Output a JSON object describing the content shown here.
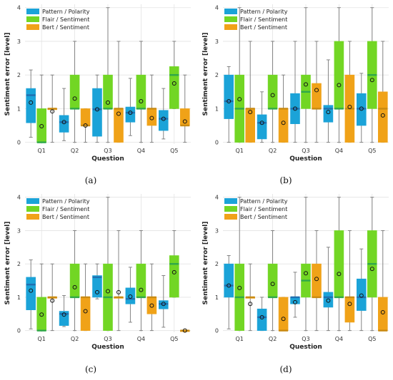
{
  "figure": {
    "background": "#ffffff",
    "colors": {
      "pattern": "#1ba3d8",
      "flair": "#72d624",
      "bert": "#f0a218",
      "median": [
        "#1f6fb0",
        "#2fa84a",
        "#c98a12"
      ]
    }
  },
  "chart_data": [
    {
      "type": "box",
      "panel_label": "(a)",
      "xlabel": "Question",
      "ylabel": "Sentiment error [level]",
      "ylim": [
        -0.05,
        4.1
      ],
      "yticks": [
        0,
        1,
        2,
        3,
        4
      ],
      "categories": [
        "Q1",
        "Q2",
        "Q3",
        "Q4",
        "Q5"
      ],
      "legend_position": "top-left",
      "grid": true,
      "series": [
        {
          "name": "Pattern / Polarity",
          "color": "#1ba3d8",
          "boxes": [
            {
              "whisker_low": 0.15,
              "q1": 0.58,
              "median": 1.4,
              "q3": 1.6,
              "whisker_high": 2.15,
              "mean": 1.18
            },
            {
              "whisker_low": 0.05,
              "q1": 0.3,
              "median": 0.6,
              "q3": 0.8,
              "whisker_high": 1.6,
              "mean": 0.6
            },
            {
              "whisker_low": 0.0,
              "q1": 0.18,
              "median": 0.98,
              "q3": 1.6,
              "whisker_high": 2.0,
              "mean": 0.98
            },
            {
              "whisker_low": 0.2,
              "q1": 0.6,
              "median": 0.88,
              "q3": 1.05,
              "whisker_high": 1.9,
              "mean": 0.88
            },
            {
              "whisker_low": 0.1,
              "q1": 0.35,
              "median": 0.7,
              "q3": 0.95,
              "whisker_high": 1.6,
              "mean": 0.7
            }
          ]
        },
        {
          "name": "Flair / Sentiment",
          "color": "#72d624",
          "boxes": [
            {
              "whisker_low": 0.0,
              "q1": 0.0,
              "median": 0.0,
              "q3": 1.0,
              "whisker_high": 2.0,
              "mean": 0.48
            },
            {
              "whisker_low": 0.0,
              "q1": 1.0,
              "median": 1.0,
              "q3": 2.0,
              "whisker_high": 3.0,
              "mean": 1.3
            },
            {
              "whisker_low": 0.0,
              "q1": 1.0,
              "median": 1.0,
              "q3": 2.0,
              "whisker_high": 4.0,
              "mean": 1.18
            },
            {
              "whisker_low": 0.0,
              "q1": 1.0,
              "median": 1.0,
              "q3": 2.0,
              "whisker_high": 3.0,
              "mean": 1.22
            },
            {
              "whisker_low": 1.0,
              "q1": 1.0,
              "median": 2.0,
              "q3": 2.25,
              "whisker_high": 3.0,
              "mean": 1.75
            }
          ]
        },
        {
          "name": "Bert / Sentiment",
          "color": "#f0a218",
          "boxes": [
            {
              "whisker_low": 0.0,
              "q1": 1.0,
              "median": 1.0,
              "q3": 1.0,
              "whisker_high": 2.0,
              "mean": 0.92
            },
            {
              "whisker_low": 0.0,
              "q1": 0.5,
              "median": 0.5,
              "q3": 1.0,
              "whisker_high": 1.0,
              "mean": 0.5
            },
            {
              "whisker_low": 0.0,
              "q1": 0.0,
              "median": 1.0,
              "q3": 1.0,
              "whisker_high": 3.0,
              "mean": 0.85
            },
            {
              "whisker_low": 0.0,
              "q1": 0.5,
              "median": 1.0,
              "q3": 1.0,
              "whisker_high": 2.0,
              "mean": 0.72
            },
            {
              "whisker_low": 0.0,
              "q1": 0.5,
              "median": 0.5,
              "q3": 1.0,
              "whisker_high": 2.0,
              "mean": 0.62
            }
          ]
        }
      ]
    },
    {
      "type": "box",
      "panel_label": "(b)",
      "xlabel": "Question",
      "ylabel": "Sentiment error [level]",
      "ylim": [
        -0.05,
        4.1
      ],
      "yticks": [
        0,
        1,
        2,
        3,
        4
      ],
      "categories": [
        "Q1",
        "Q2",
        "Q3",
        "Q4",
        "Q5"
      ],
      "legend_position": "top-left",
      "grid": true,
      "series": [
        {
          "name": "Pattern / Polarity",
          "color": "#1ba3d8",
          "boxes": [
            {
              "whisker_low": 0.0,
              "q1": 0.7,
              "median": 1.22,
              "q3": 2.0,
              "whisker_high": 2.25,
              "mean": 1.22
            },
            {
              "whisker_low": 0.0,
              "q1": 0.1,
              "median": 0.58,
              "q3": 0.82,
              "whisker_high": 1.5,
              "mean": 0.58
            },
            {
              "whisker_low": 0.0,
              "q1": 0.55,
              "median": 1.0,
              "q3": 1.45,
              "whisker_high": 3.0,
              "mean": 1.0
            },
            {
              "whisker_low": 0.0,
              "q1": 0.6,
              "median": 1.0,
              "q3": 1.1,
              "whisker_high": 2.45,
              "mean": 0.9
            },
            {
              "whisker_low": 0.0,
              "q1": 0.5,
              "median": 1.0,
              "q3": 1.45,
              "whisker_high": 2.05,
              "mean": 1.0
            }
          ]
        },
        {
          "name": "Flair / Sentiment",
          "color": "#72d624",
          "boxes": [
            {
              "whisker_low": 0.0,
              "q1": 0.0,
              "median": 1.0,
              "q3": 2.0,
              "whisker_high": 4.0,
              "mean": 1.28
            },
            {
              "whisker_low": 0.0,
              "q1": 1.0,
              "median": 1.0,
              "q3": 2.0,
              "whisker_high": 3.0,
              "mean": 1.4
            },
            {
              "whisker_low": 0.0,
              "q1": 1.0,
              "median": 1.5,
              "q3": 2.0,
              "whisker_high": 4.0,
              "mean": 1.72
            },
            {
              "whisker_low": 0.0,
              "q1": 1.0,
              "median": 1.0,
              "q3": 3.0,
              "whisker_high": 4.0,
              "mean": 1.7
            },
            {
              "whisker_low": 0.0,
              "q1": 1.0,
              "median": 2.0,
              "q3": 3.0,
              "whisker_high": 4.0,
              "mean": 1.85
            }
          ]
        },
        {
          "name": "Bert / Sentiment",
          "color": "#f0a218",
          "boxes": [
            {
              "whisker_low": 0.0,
              "q1": 0.0,
              "median": 1.0,
              "q3": 1.0,
              "whisker_high": 3.0,
              "mean": 0.9
            },
            {
              "whisker_low": 0.0,
              "q1": 0.0,
              "median": 1.0,
              "q3": 1.0,
              "whisker_high": 2.0,
              "mean": 0.58
            },
            {
              "whisker_low": 0.0,
              "q1": 1.0,
              "median": 1.0,
              "q3": 1.75,
              "whisker_high": 3.0,
              "mean": 1.55
            },
            {
              "whisker_low": 0.0,
              "q1": 0.0,
              "median": 1.0,
              "q3": 2.0,
              "whisker_high": 3.0,
              "mean": 1.05
            },
            {
              "whisker_low": 0.0,
              "q1": 0.0,
              "median": 1.0,
              "q3": 1.5,
              "whisker_high": 3.0,
              "mean": 0.8
            }
          ]
        }
      ]
    },
    {
      "type": "box",
      "panel_label": "(c)",
      "xlabel": "Question",
      "ylabel": "Sentiment error [level]",
      "ylim": [
        -0.05,
        4.1
      ],
      "yticks": [
        0,
        1,
        2,
        3,
        4
      ],
      "categories": [
        "Q1",
        "Q2",
        "Q3",
        "Q4",
        "Q5"
      ],
      "legend_position": "top-left",
      "grid": true,
      "series": [
        {
          "name": "Pattern / Polarity",
          "color": "#1ba3d8",
          "boxes": [
            {
              "whisker_low": 0.05,
              "q1": 0.62,
              "median": 1.38,
              "q3": 1.6,
              "whisker_high": 2.12,
              "mean": 1.2
            },
            {
              "whisker_low": 0.12,
              "q1": 0.15,
              "median": 0.5,
              "q3": 0.58,
              "whisker_high": 1.05,
              "mean": 0.48
            },
            {
              "whisker_low": 0.95,
              "q1": 1.0,
              "median": 1.6,
              "q3": 1.65,
              "whisker_high": 2.0,
              "mean": 1.15
            },
            {
              "whisker_low": 0.25,
              "q1": 0.8,
              "median": 0.95,
              "q3": 1.28,
              "whisker_high": 1.9,
              "mean": 1.02
            },
            {
              "whisker_low": 0.1,
              "q1": 0.65,
              "median": 0.8,
              "q3": 0.9,
              "whisker_high": 1.65,
              "mean": 0.8
            }
          ]
        },
        {
          "name": "Flair / Sentiment",
          "color": "#72d624",
          "boxes": [
            {
              "whisker_low": 0.0,
              "q1": 0.0,
              "median": 0.0,
              "q3": 1.0,
              "whisker_high": 2.0,
              "mean": 0.48
            },
            {
              "whisker_low": 0.0,
              "q1": 1.0,
              "median": 1.0,
              "q3": 2.0,
              "whisker_high": 3.0,
              "mean": 1.3
            },
            {
              "whisker_low": 0.0,
              "q1": 0.0,
              "median": 1.0,
              "q3": 2.0,
              "whisker_high": 4.0,
              "mean": 1.18
            },
            {
              "whisker_low": 0.0,
              "q1": 1.0,
              "median": 1.0,
              "q3": 2.0,
              "whisker_high": 3.0,
              "mean": 1.22
            },
            {
              "whisker_low": 1.0,
              "q1": 1.0,
              "median": 2.0,
              "q3": 2.25,
              "whisker_high": 3.0,
              "mean": 1.75
            }
          ]
        },
        {
          "name": "Bert / Sentiment",
          "color": "#f0a218",
          "boxes": [
            {
              "whisker_low": 0.0,
              "q1": 1.0,
              "median": 1.0,
              "q3": 1.0,
              "whisker_high": 2.0,
              "mean": 0.9
            },
            {
              "whisker_low": 0.0,
              "q1": 0.0,
              "median": 1.0,
              "q3": 1.0,
              "whisker_high": 2.0,
              "mean": 0.58
            },
            {
              "whisker_low": 0.0,
              "q1": 1.0,
              "median": 1.0,
              "q3": 1.0,
              "whisker_high": 3.0,
              "mean": 1.15
            },
            {
              "whisker_low": 0.0,
              "q1": 0.5,
              "median": 1.0,
              "q3": 1.0,
              "whisker_high": 2.0,
              "mean": 0.75
            },
            {
              "whisker_low": 0.0,
              "q1": 0.0,
              "median": 0.0,
              "q3": 0.0,
              "whisker_high": 0.0,
              "mean": 0.0
            }
          ]
        }
      ]
    },
    {
      "type": "box",
      "panel_label": "(d)",
      "xlabel": "Question",
      "ylabel": "Sentiment error [level]",
      "ylim": [
        -0.05,
        4.1
      ],
      "yticks": [
        0,
        1,
        2,
        3,
        4
      ],
      "categories": [
        "Q1",
        "Q2",
        "Q3",
        "Q4",
        "Q5"
      ],
      "legend_position": "top-left",
      "grid": true,
      "series": [
        {
          "name": "Pattern / Polarity",
          "color": "#1ba3d8",
          "boxes": [
            {
              "whisker_low": 0.05,
              "q1": 1.0,
              "median": 1.35,
              "q3": 2.0,
              "whisker_high": 2.25,
              "mean": 1.35
            },
            {
              "whisker_low": 0.0,
              "q1": 0.0,
              "median": 0.4,
              "q3": 0.65,
              "whisker_high": 1.0,
              "mean": 0.4
            },
            {
              "whisker_low": 0.4,
              "q1": 0.8,
              "median": 1.0,
              "q3": 1.0,
              "whisker_high": 1.75,
              "mean": 0.85
            },
            {
              "whisker_low": 0.0,
              "q1": 0.7,
              "median": 1.0,
              "q3": 1.15,
              "whisker_high": 2.5,
              "mean": 0.9
            },
            {
              "whisker_low": 0.0,
              "q1": 0.6,
              "median": 1.0,
              "q3": 1.55,
              "whisker_high": 2.45,
              "mean": 1.05
            }
          ]
        },
        {
          "name": "Flair / Sentiment",
          "color": "#72d624",
          "boxes": [
            {
              "whisker_low": 0.0,
              "q1": 0.0,
              "median": 1.0,
              "q3": 2.0,
              "whisker_high": 4.0,
              "mean": 1.28
            },
            {
              "whisker_low": 0.0,
              "q1": 1.0,
              "median": 1.0,
              "q3": 2.0,
              "whisker_high": 3.0,
              "mean": 1.4
            },
            {
              "whisker_low": 0.0,
              "q1": 1.0,
              "median": 1.5,
              "q3": 2.0,
              "whisker_high": 4.0,
              "mean": 1.72
            },
            {
              "whisker_low": 0.0,
              "q1": 1.0,
              "median": 1.0,
              "q3": 3.0,
              "whisker_high": 4.0,
              "mean": 1.7
            },
            {
              "whisker_low": 0.0,
              "q1": 1.0,
              "median": 2.0,
              "q3": 3.0,
              "whisker_high": 4.0,
              "mean": 1.85
            }
          ]
        },
        {
          "name": "Bert / Sentiment",
          "color": "#f0a218",
          "boxes": [
            {
              "whisker_low": 0.0,
              "q1": 1.0,
              "median": 1.0,
              "q3": 1.0,
              "whisker_high": 2.0,
              "mean": 0.8
            },
            {
              "whisker_low": 0.0,
              "q1": 0.0,
              "median": 0.0,
              "q3": 1.0,
              "whisker_high": 1.0,
              "mean": 0.35
            },
            {
              "whisker_low": 0.0,
              "q1": 1.0,
              "median": 1.0,
              "q3": 2.0,
              "whisker_high": 3.0,
              "mean": 1.55
            },
            {
              "whisker_low": 0.0,
              "q1": 0.25,
              "median": 1.0,
              "q3": 1.0,
              "whisker_high": 3.0,
              "mean": 0.8
            },
            {
              "whisker_low": 0.0,
              "q1": 0.0,
              "median": 0.0,
              "q3": 1.0,
              "whisker_high": 3.0,
              "mean": 0.55
            }
          ]
        }
      ]
    }
  ]
}
